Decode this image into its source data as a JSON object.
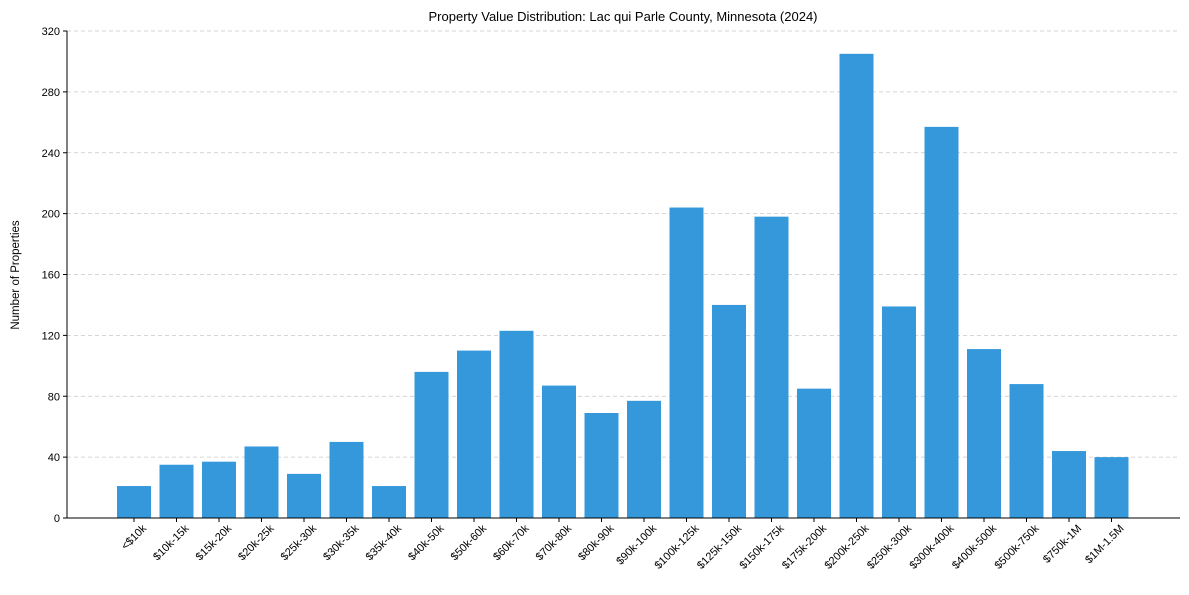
{
  "chart_data": {
    "type": "bar",
    "title": "Property Value Distribution: Lac qui Parle County, Minnesota (2024)",
    "xlabel": "",
    "ylabel": "Number of Properties",
    "ylim": [
      0,
      320
    ],
    "yticks": [
      0,
      40,
      80,
      120,
      160,
      200,
      240,
      280,
      320
    ],
    "grid": "horizontal dashed",
    "bar_color": "#3498db",
    "categories": [
      "<$10k",
      "$10k-15k",
      "$15k-20k",
      "$20k-25k",
      "$25k-30k",
      "$30k-35k",
      "$35k-40k",
      "$40k-50k",
      "$50k-60k",
      "$60k-70k",
      "$70k-80k",
      "$80k-90k",
      "$90k-100k",
      "$100k-125k",
      "$125k-150k",
      "$150k-175k",
      "$175k-200k",
      "$200k-250k",
      "$250k-300k",
      "$300k-400k",
      "$400k-500k",
      "$500k-750k",
      "$750k-1M",
      "$1M-1.5M"
    ],
    "values": [
      21,
      35,
      37,
      47,
      29,
      50,
      21,
      96,
      110,
      123,
      87,
      69,
      77,
      204,
      140,
      198,
      85,
      305,
      139,
      257,
      111,
      88,
      44,
      40
    ]
  }
}
